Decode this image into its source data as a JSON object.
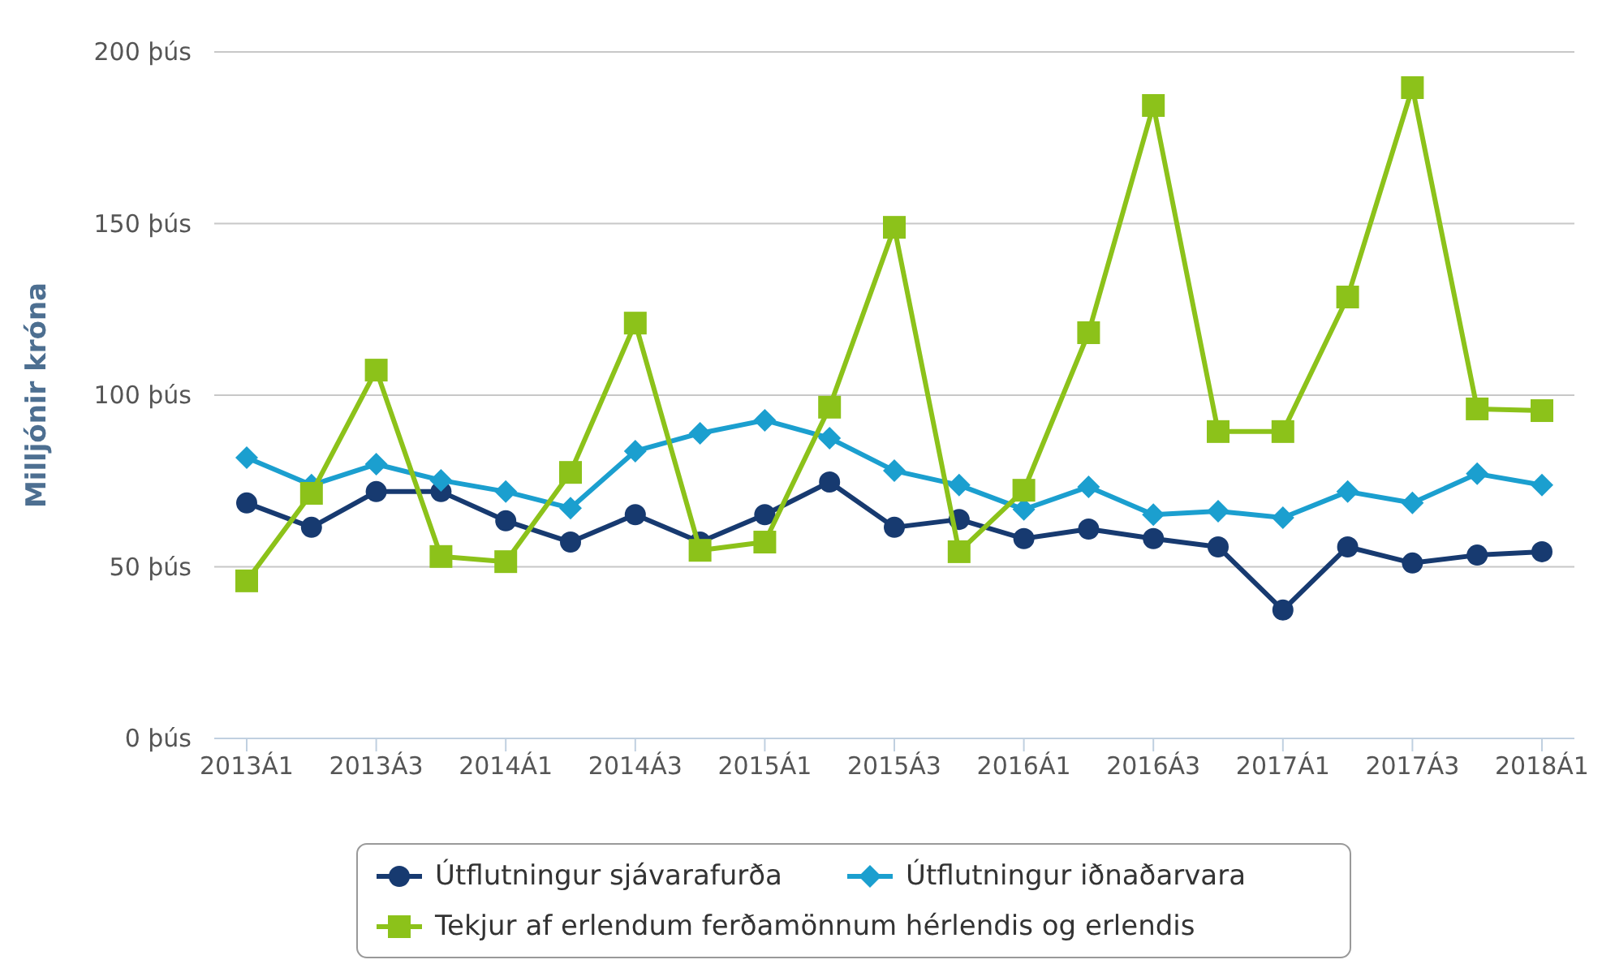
{
  "chart_data": {
    "type": "line",
    "ylabel": "Milljónir króna",
    "categories": [
      "2013Á1",
      null,
      "2013Á3",
      null,
      "2014Á1",
      null,
      "2014Á3",
      null,
      "2015Á1",
      null,
      "2015Á3",
      null,
      "2016Á1",
      null,
      "2016Á3",
      null,
      "2017Á1",
      null,
      "2017Á3",
      null,
      "2018Á1"
    ],
    "series": [
      {
        "name": "Útflutningur sjávarafurða",
        "color": "#173a70",
        "marker": "circle",
        "values": [
          68.6,
          61.5,
          71.9,
          71.9,
          63.4,
          57.2,
          65.2,
          57.2,
          65.2,
          74.7,
          61.5,
          63.8,
          58.2,
          61.0,
          58.2,
          55.8,
          37.4,
          55.8,
          51.1,
          53.4,
          54.4
        ]
      },
      {
        "name": "Útflutningur iðnaðarvara",
        "color": "#1b9fcf",
        "marker": "diamond",
        "values": [
          81.8,
          73.8,
          79.9,
          75.2,
          71.9,
          67.1,
          83.7,
          88.9,
          92.7,
          87.5,
          78.0,
          73.8,
          66.7,
          73.3,
          65.2,
          66.2,
          64.3,
          71.9,
          68.6,
          77.1,
          73.8
        ]
      },
      {
        "name": "Tekjur af erlendum ferðamönnum hérlendis og erlendis",
        "color": "#8cc21a",
        "marker": "square",
        "values": [
          45.9,
          71.4,
          107.3,
          53.0,
          51.5,
          77.5,
          121.0,
          54.8,
          57.2,
          96.5,
          148.9,
          54.4,
          72.3,
          118.2,
          184.4,
          89.4,
          89.4,
          128.6,
          189.6,
          96.0,
          95.5
        ]
      }
    ],
    "ylim": [
      0,
      200
    ],
    "yticks": [
      {
        "value": 0,
        "label": "0 þús"
      },
      {
        "value": 50,
        "label": "50 þús"
      },
      {
        "value": 100,
        "label": "100 þús"
      },
      {
        "value": 150,
        "label": "150 þús"
      },
      {
        "value": 200,
        "label": "200 þús"
      }
    ],
    "grid": "y",
    "legend": "bottom"
  }
}
